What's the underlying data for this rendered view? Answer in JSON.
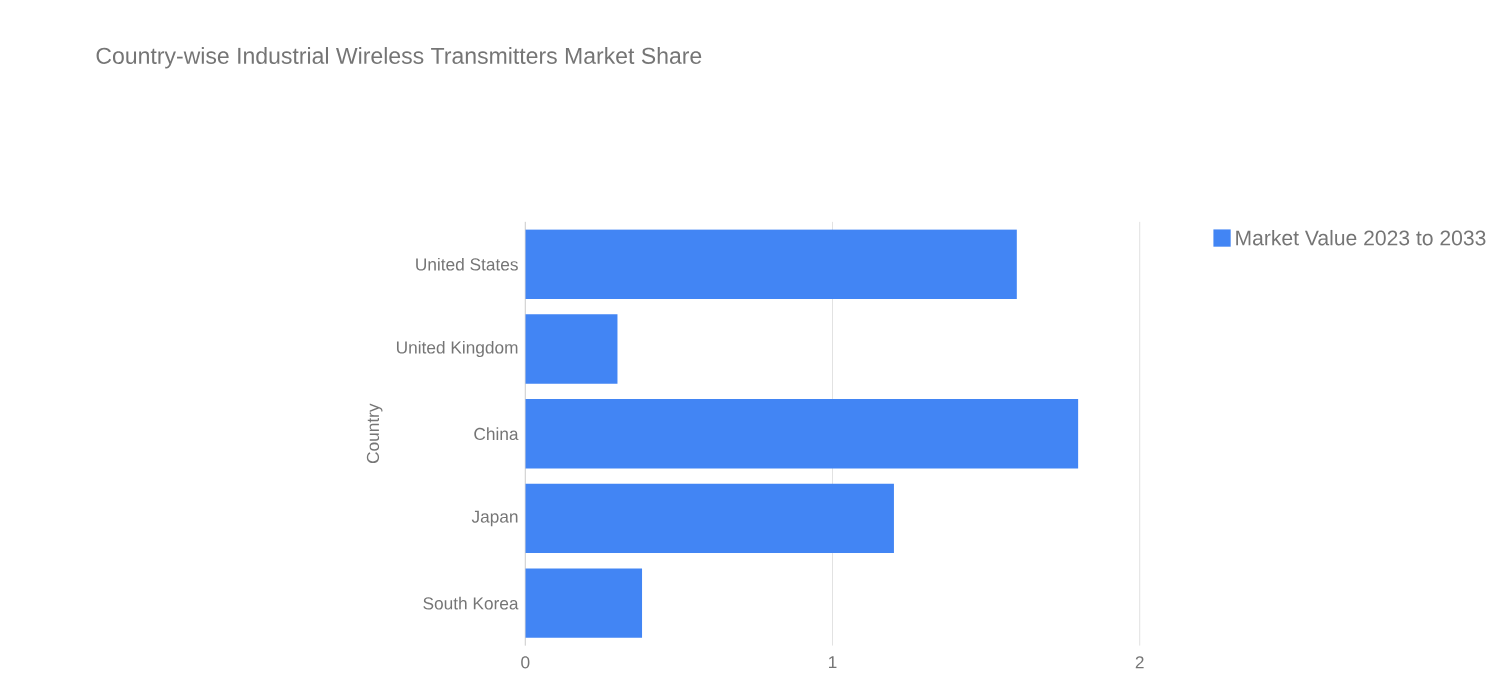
{
  "chart_data": {
    "type": "bar",
    "orientation": "horizontal",
    "title": "Country-wise Industrial Wireless Transmitters Market Share",
    "ylabel": "Country",
    "categories": [
      "United States",
      "United Kingdom",
      "China",
      "Japan",
      "South Korea"
    ],
    "series": [
      {
        "name": "Market Value 2023 to 2033",
        "color": "#4285f4",
        "values": [
          1.6,
          0.3,
          1.8,
          1.2,
          0.38
        ]
      }
    ],
    "xlim": [
      0,
      2
    ],
    "xticks": [
      0,
      1,
      2
    ],
    "grid": "x",
    "legend": "top right"
  }
}
